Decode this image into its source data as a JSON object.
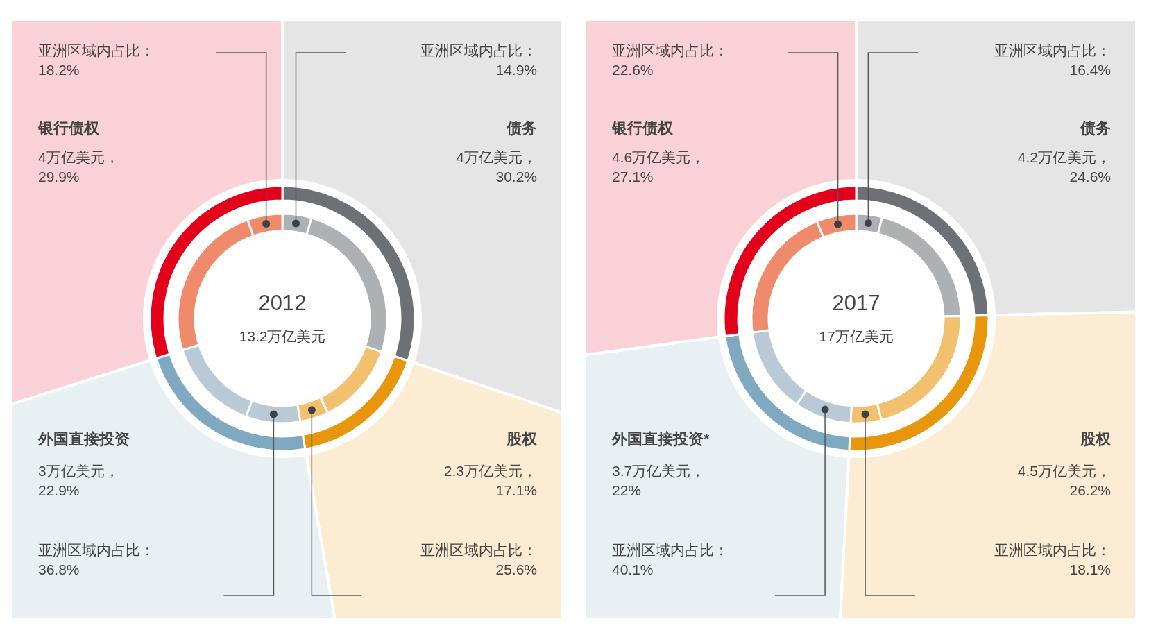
{
  "chart_data": [
    {
      "type": "donut",
      "title": "2012",
      "subtitle": "13.2万亿美元",
      "categories": [
        "债务",
        "股权",
        "外国直接投资",
        "银行债权"
      ],
      "series": [
        {
          "values": [
            30.2,
            17.1,
            22.9,
            29.9
          ],
          "colors": [
            "#6d7074",
            "#e8960c",
            "#7fa9c1",
            "#e2001a"
          ],
          "value_labels": [
            "4万亿美元，\n30.2%",
            "2.3万亿美元，\n17.1%",
            "3万亿美元，\n22.9%",
            "4万亿美元，\n29.9%"
          ]
        },
        {
          "x": [
            null,
            null,
            null,
            null,
            null,
            null,
            null,
            null
          ],
          "values": [
            4.5,
            25.7,
            12.7,
            4.4,
            8.4,
            14.5,
            24.5,
            5.4
          ],
          "colors": [
            "#aeb1b4",
            "#aeb1b4",
            "#f2c06e",
            "#f2c06e",
            "#b9cad6",
            "#b9cad6",
            "#ef8a6a",
            "#ef8a6a"
          ]
        }
      ],
      "annotations": [
        "亚洲区域内占比：\n14.9%",
        "亚洲区域内占比：\n25.6%",
        "亚洲区域内占比：\n36.8%",
        "亚洲区域内占比：\n18.2%"
      ]
    },
    {
      "type": "donut",
      "title": "2017",
      "subtitle": "17万亿美元",
      "categories": [
        "债务",
        "股权",
        "外国直接投资*",
        "银行债权"
      ],
      "series": [
        {
          "values": [
            24.6,
            26.2,
            22,
            27.1
          ],
          "colors": [
            "#6d7074",
            "#e8960c",
            "#7fa9c1",
            "#e2001a"
          ],
          "value_labels": [
            "4.2万亿美元，\n24.6%",
            "4.5万亿美元，\n26.2%",
            "3.7万亿美元，\n22%",
            "4.6万亿美元，\n27.1%"
          ]
        },
        {
          "x": [
            null,
            null,
            null,
            null,
            null,
            null,
            null,
            null
          ],
          "values": [
            4.0,
            20.6,
            21.5,
            4.7,
            8.8,
            13.2,
            21.0,
            6.1
          ],
          "colors": [
            "#aeb1b4",
            "#aeb1b4",
            "#f2c06e",
            "#f2c06e",
            "#b9cad6",
            "#b9cad6",
            "#ef8a6a",
            "#ef8a6a"
          ]
        }
      ],
      "annotations": [
        "亚洲区域内占比：\n16.4%",
        "亚洲区域内占比：\n18.1%",
        "亚洲区域内占比：\n40.1%",
        "亚洲区域内占比：\n22.6%"
      ]
    }
  ]
}
